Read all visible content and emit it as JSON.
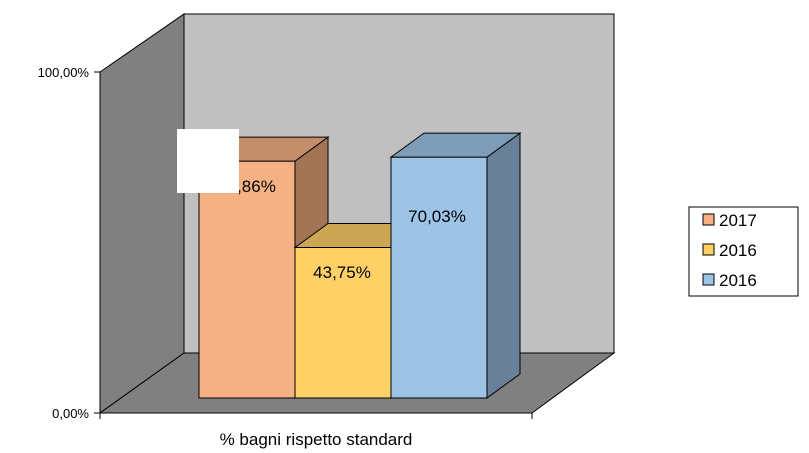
{
  "chart_data": {
    "type": "bar",
    "style": "3d-clustered-column",
    "categories": [
      "% bagni rispetto standard"
    ],
    "series": [
      {
        "name": "2017",
        "values": [
          68.86
        ],
        "value_label": "68,86%",
        "color": "#F4B183"
      },
      {
        "name": "2016",
        "values": [
          43.75
        ],
        "value_label": "43,75%",
        "color": "#FFD066"
      },
      {
        "name": "2016",
        "values": [
          70.03
        ],
        "value_label": "70,03%",
        "color": "#9DC3E6"
      }
    ],
    "ylim": [
      0,
      100
    ],
    "yticks": [
      "0,00%",
      "100,00%"
    ],
    "xlabel": "% bagni rispetto standard",
    "ylabel": "",
    "title": "",
    "legend_position": "right",
    "wall_color": "#C0C0C0",
    "side_wall_color": "#808080",
    "floor_color": "#808080"
  }
}
